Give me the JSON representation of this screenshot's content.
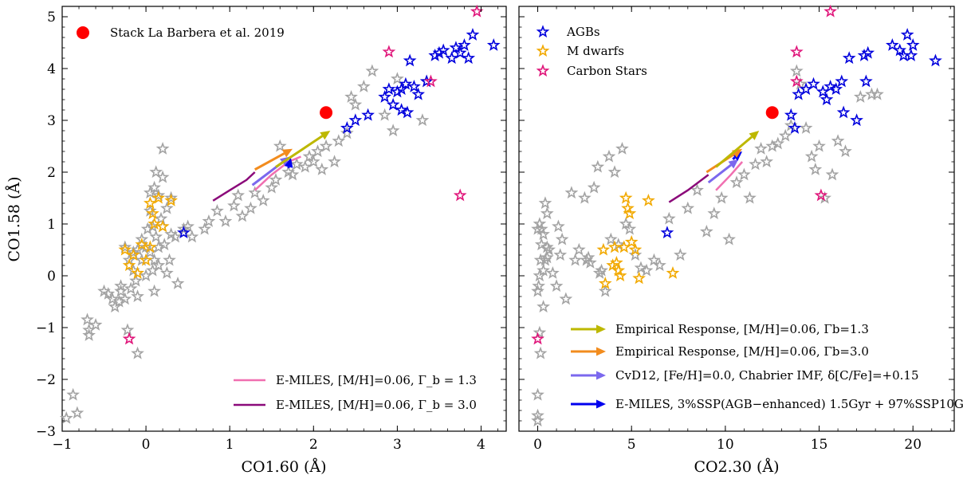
{
  "chart_data": [
    {
      "type": "scatter",
      "xlabel": "CO1.60 (Å)",
      "ylabel": "CO1.58 (Å)",
      "xlim": [
        -1,
        4.3
      ],
      "ylim": [
        -3,
        5.2
      ],
      "xticks": [
        -1,
        0,
        1,
        2,
        3,
        4
      ],
      "yticks": [
        -3,
        -2,
        -1,
        0,
        1,
        2,
        3,
        4,
        5
      ],
      "xtick_labels": [
        "−1",
        "0",
        "1",
        "2",
        "3",
        "4"
      ],
      "ytick_labels": [
        "−3",
        "−2",
        "−1",
        "0",
        "1",
        "2",
        "3",
        "4",
        "5"
      ],
      "legend_top": {
        "placement": "top-left",
        "label": "Stack La Barbera et al. 2019"
      },
      "legend_bottom": {
        "placement": "bottom-right",
        "labels": [
          "E-MILES, [M/H]=0.06, Γ_b = 1.3",
          "E-MILES, [M/H]=0.06, Γ_b = 3.0"
        ]
      },
      "stack_point": [
        2.15,
        3.15
      ],
      "gray_stars": [
        [
          -0.95,
          -2.75
        ],
        [
          -0.87,
          -2.3
        ],
        [
          -0.82,
          -2.65
        ],
        [
          -0.7,
          -0.85
        ],
        [
          -0.68,
          -1.05
        ],
        [
          -0.68,
          -1.15
        ],
        [
          -0.6,
          -0.95
        ],
        [
          -0.5,
          -0.3
        ],
        [
          -0.45,
          -0.35
        ],
        [
          -0.4,
          -0.45
        ],
        [
          -0.37,
          -0.6
        ],
        [
          -0.32,
          -0.5
        ],
        [
          -0.3,
          -0.3
        ],
        [
          -0.25,
          -0.45
        ],
        [
          -0.3,
          -0.2
        ],
        [
          -0.22,
          -1.05
        ],
        [
          -0.2,
          0.3
        ],
        [
          -0.18,
          -0.25
        ],
        [
          -0.15,
          0.1
        ],
        [
          -0.12,
          -0.1
        ],
        [
          -0.1,
          0.5
        ],
        [
          -0.1,
          -0.4
        ],
        [
          -0.05,
          0.7
        ],
        [
          -0.05,
          0.3
        ],
        [
          0.0,
          0.55
        ],
        [
          0.02,
          0.9
        ],
        [
          0.05,
          1.6
        ],
        [
          0.05,
          1.25
        ],
        [
          0.05,
          0.45
        ],
        [
          0.08,
          0.95
        ],
        [
          0.1,
          1.7
        ],
        [
          0.1,
          0.3
        ],
        [
          0.12,
          0.75
        ],
        [
          0.12,
          2.0
        ],
        [
          0.15,
          1.55
        ],
        [
          0.15,
          0.2
        ],
        [
          0.18,
          1.1
        ],
        [
          0.2,
          2.45
        ],
        [
          0.2,
          1.9
        ],
        [
          0.2,
          0.95
        ],
        [
          0.22,
          0.6
        ],
        [
          0.25,
          1.3
        ],
        [
          0.25,
          0.05
        ],
        [
          0.28,
          0.3
        ],
        [
          0.3,
          0.8
        ],
        [
          0.35,
          0.75
        ],
        [
          0.38,
          -0.15
        ],
        [
          0.45,
          0.9
        ],
        [
          0.55,
          0.75
        ],
        [
          -0.1,
          -1.5
        ],
        [
          -0.25,
          0.55
        ],
        [
          0.08,
          0.1
        ],
        [
          0.0,
          0.0
        ],
        [
          0.3,
          1.5
        ],
        [
          0.15,
          0.55
        ],
        [
          0.75,
          1.05
        ],
        [
          0.85,
          1.25
        ],
        [
          0.95,
          1.05
        ],
        [
          1.05,
          1.35
        ],
        [
          1.1,
          1.55
        ],
        [
          1.15,
          1.15
        ],
        [
          1.25,
          1.3
        ],
        [
          1.3,
          1.6
        ],
        [
          1.4,
          1.45
        ],
        [
          1.5,
          1.7
        ],
        [
          1.55,
          1.85
        ],
        [
          1.6,
          2.5
        ],
        [
          1.7,
          2.0
        ],
        [
          1.75,
          1.95
        ],
        [
          1.8,
          2.15
        ],
        [
          1.9,
          2.1
        ],
        [
          1.95,
          2.3
        ],
        [
          2.0,
          2.2
        ],
        [
          2.05,
          2.4
        ],
        [
          2.1,
          2.05
        ],
        [
          2.15,
          2.5
        ],
        [
          2.25,
          2.2
        ],
        [
          2.3,
          2.6
        ],
        [
          2.4,
          2.75
        ],
        [
          2.45,
          3.45
        ],
        [
          2.5,
          3.3
        ],
        [
          2.6,
          3.65
        ],
        [
          2.7,
          3.95
        ],
        [
          2.85,
          3.1
        ],
        [
          2.95,
          2.8
        ],
        [
          3.0,
          3.8
        ],
        [
          3.3,
          3.0
        ],
        [
          3.35,
          3.75
        ],
        [
          0.5,
          0.95
        ],
        [
          0.7,
          0.9
        ],
        [
          -0.15,
          0.45
        ],
        [
          0.1,
          -0.3
        ]
      ],
      "agbs": [
        [
          0.45,
          0.83
        ],
        [
          2.4,
          2.85
        ],
        [
          2.5,
          3.0
        ],
        [
          2.65,
          3.1
        ],
        [
          2.85,
          3.45
        ],
        [
          2.9,
          3.6
        ],
        [
          2.95,
          3.3
        ],
        [
          3.0,
          3.55
        ],
        [
          3.05,
          3.2
        ],
        [
          3.05,
          3.6
        ],
        [
          3.1,
          3.7
        ],
        [
          3.12,
          3.15
        ],
        [
          3.15,
          4.15
        ],
        [
          3.2,
          3.65
        ],
        [
          3.25,
          3.5
        ],
        [
          3.35,
          3.75
        ],
        [
          3.45,
          4.25
        ],
        [
          3.5,
          4.3
        ],
        [
          3.55,
          4.35
        ],
        [
          3.65,
          4.2
        ],
        [
          3.7,
          4.4
        ],
        [
          3.75,
          4.3
        ],
        [
          3.8,
          4.45
        ],
        [
          3.85,
          4.2
        ],
        [
          3.9,
          4.65
        ],
        [
          4.15,
          4.45
        ]
      ],
      "m_dwarfs": [
        [
          -0.25,
          0.5
        ],
        [
          -0.2,
          0.2
        ],
        [
          -0.15,
          0.4
        ],
        [
          -0.1,
          0.05
        ],
        [
          -0.05,
          0.6
        ],
        [
          0.0,
          0.3
        ],
        [
          0.05,
          1.4
        ],
        [
          0.08,
          1.2
        ],
        [
          0.1,
          1.0
        ],
        [
          0.15,
          1.5
        ],
        [
          0.2,
          0.95
        ],
        [
          0.3,
          1.45
        ],
        [
          0.05,
          0.55
        ]
      ],
      "carbon_stars": [
        [
          -0.2,
          -1.22
        ],
        [
          2.9,
          4.32
        ],
        [
          3.4,
          3.75
        ],
        [
          3.75,
          1.55
        ],
        [
          3.95,
          5.1
        ]
      ],
      "arrows": [
        {
          "from": [
            1.27,
            1.75
          ],
          "to": [
            1.72,
            2.3
          ],
          "color": "#7b68ee"
        },
        {
          "from": [
            1.7,
            2.08
          ],
          "to": [
            1.73,
            2.28
          ],
          "color": "#0000ee"
        },
        {
          "from": [
            1.3,
            2.05
          ],
          "to": [
            1.75,
            2.45
          ],
          "color": "#f28c1e"
        },
        {
          "from": [
            1.55,
            2.1
          ],
          "to": [
            2.2,
            2.8
          ],
          "color": "#bdb800"
        }
      ],
      "lines": [
        {
          "label": "E-MILES, [M/H]=0.06, Γ_b = 1.3",
          "color": "#f06fb0",
          "points": [
            [
              1.3,
              1.65
            ],
            [
              1.5,
              1.95
            ],
            [
              1.7,
              2.2
            ],
            [
              1.85,
              2.3
            ]
          ]
        },
        {
          "label": "E-MILES, [M/H]=0.06, Γ_b = 3.0",
          "color": "#8b0a7a",
          "points": [
            [
              0.8,
              1.45
            ],
            [
              1.0,
              1.65
            ],
            [
              1.2,
              1.85
            ],
            [
              1.3,
              2.0
            ]
          ]
        }
      ]
    },
    {
      "type": "scatter",
      "xlabel": "CO2.30 (Å)",
      "ylabel": "",
      "xlim": [
        -1,
        22.2
      ],
      "ylim": [
        -3,
        5.2
      ],
      "xticks": [
        0,
        5,
        10,
        15,
        20
      ],
      "yticks": [
        -3,
        -2,
        -1,
        0,
        1,
        2,
        3,
        4,
        5
      ],
      "xtick_labels": [
        "0",
        "5",
        "10",
        "15",
        "20"
      ],
      "legend_top": {
        "placement": "top-left",
        "labels": [
          "AGBs",
          "M dwarfs",
          "Carbon Stars"
        ]
      },
      "legend_bottom": {
        "placement": "bottom-right",
        "labels": [
          "Empirical Response, [M/H]=0.06, Γb=1.3",
          "Empirical Response, [M/H]=0.06, Γb=3.0",
          "CvD12, [Fe/H]=0.0, Chabrier IMF, δ[C/Fe]=+0.15",
          "E-MILES, 3%SSP(AGB−enhanced) 1.5Gyr + 97%SSP10Gyr"
        ]
      },
      "stack_point": [
        12.5,
        3.15
      ],
      "gray_stars": [
        [
          0.0,
          -2.7
        ],
        [
          0.0,
          -2.8
        ],
        [
          0.0,
          -2.3
        ],
        [
          0.1,
          -1.1
        ],
        [
          0.15,
          -1.5
        ],
        [
          0.0,
          -0.3
        ],
        [
          0.05,
          -0.2
        ],
        [
          0.1,
          0.0
        ],
        [
          0.15,
          0.3
        ],
        [
          0.2,
          0.6
        ],
        [
          0.3,
          0.8
        ],
        [
          0.4,
          1.4
        ],
        [
          0.5,
          1.2
        ],
        [
          0.0,
          0.9
        ],
        [
          0.1,
          1.0
        ],
        [
          0.3,
          -0.6
        ],
        [
          0.4,
          0.3
        ],
        [
          0.5,
          0.35
        ],
        [
          0.6,
          0.5
        ],
        [
          0.8,
          0.05
        ],
        [
          1.0,
          -0.2
        ],
        [
          1.2,
          0.4
        ],
        [
          1.3,
          0.7
        ],
        [
          1.5,
          -0.45
        ],
        [
          1.8,
          1.6
        ],
        [
          2.0,
          0.3
        ],
        [
          2.2,
          0.5
        ],
        [
          2.5,
          1.5
        ],
        [
          2.6,
          0.3
        ],
        [
          2.8,
          0.25
        ],
        [
          3.0,
          1.7
        ],
        [
          3.2,
          2.1
        ],
        [
          3.4,
          0.1
        ],
        [
          3.6,
          -0.3
        ],
        [
          3.8,
          2.3
        ],
        [
          3.9,
          0.7
        ],
        [
          4.1,
          2.0
        ],
        [
          4.3,
          0.6
        ],
        [
          4.5,
          2.45
        ],
        [
          4.7,
          1.0
        ],
        [
          4.9,
          0.9
        ],
        [
          5.2,
          0.4
        ],
        [
          5.5,
          0.15
        ],
        [
          5.8,
          0.1
        ],
        [
          6.2,
          0.3
        ],
        [
          6.5,
          0.2
        ],
        [
          7.0,
          1.1
        ],
        [
          7.6,
          0.4
        ],
        [
          8.0,
          1.3
        ],
        [
          8.5,
          1.65
        ],
        [
          9.0,
          0.85
        ],
        [
          9.4,
          1.2
        ],
        [
          9.8,
          1.5
        ],
        [
          10.2,
          0.7
        ],
        [
          10.6,
          1.8
        ],
        [
          11.0,
          1.95
        ],
        [
          11.3,
          1.5
        ],
        [
          11.6,
          2.15
        ],
        [
          11.9,
          2.45
        ],
        [
          12.2,
          2.2
        ],
        [
          12.5,
          2.5
        ],
        [
          12.8,
          2.55
        ],
        [
          13.2,
          2.7
        ],
        [
          13.5,
          2.9
        ],
        [
          13.8,
          3.95
        ],
        [
          14.0,
          3.7
        ],
        [
          14.3,
          2.85
        ],
        [
          14.6,
          2.3
        ],
        [
          14.8,
          2.05
        ],
        [
          15.0,
          2.5
        ],
        [
          15.3,
          1.5
        ],
        [
          15.7,
          1.95
        ],
        [
          16.0,
          2.6
        ],
        [
          16.4,
          2.4
        ],
        [
          17.2,
          3.45
        ],
        [
          17.8,
          3.5
        ],
        [
          18.1,
          3.5
        ],
        [
          0.5,
          0.55
        ],
        [
          0.3,
          0.1
        ],
        [
          0.2,
          0.9
        ],
        [
          1.1,
          0.95
        ],
        [
          2.7,
          0.35
        ],
        [
          3.3,
          0.05
        ]
      ],
      "agbs": [
        [
          6.9,
          0.83
        ],
        [
          13.5,
          3.1
        ],
        [
          13.7,
          2.85
        ],
        [
          13.9,
          3.5
        ],
        [
          14.3,
          3.6
        ],
        [
          14.7,
          3.7
        ],
        [
          15.2,
          3.55
        ],
        [
          15.4,
          3.4
        ],
        [
          15.6,
          3.65
        ],
        [
          15.9,
          3.6
        ],
        [
          16.2,
          3.75
        ],
        [
          16.3,
          3.15
        ],
        [
          16.6,
          4.2
        ],
        [
          17.0,
          3.0
        ],
        [
          17.5,
          3.75
        ],
        [
          17.6,
          4.3
        ],
        [
          18.9,
          4.45
        ],
        [
          19.3,
          4.35
        ],
        [
          19.5,
          4.25
        ],
        [
          19.7,
          4.65
        ],
        [
          19.9,
          4.25
        ],
        [
          20.0,
          4.45
        ],
        [
          21.2,
          4.15
        ],
        [
          17.4,
          4.25
        ]
      ],
      "m_dwarfs": [
        [
          3.5,
          0.5
        ],
        [
          3.6,
          -0.15
        ],
        [
          4.1,
          0.55
        ],
        [
          4.2,
          0.25
        ],
        [
          4.3,
          0.1
        ],
        [
          4.4,
          0.0
        ],
        [
          4.6,
          0.55
        ],
        [
          4.7,
          1.5
        ],
        [
          4.8,
          1.3
        ],
        [
          4.9,
          1.2
        ],
        [
          5.0,
          0.65
        ],
        [
          5.2,
          0.5
        ],
        [
          5.4,
          -0.05
        ],
        [
          5.9,
          1.45
        ],
        [
          7.2,
          0.05
        ],
        [
          4.0,
          0.2
        ]
      ],
      "carbon_stars": [
        [
          0.0,
          -1.22
        ],
        [
          13.8,
          4.32
        ],
        [
          13.8,
          3.75
        ],
        [
          15.1,
          1.55
        ],
        [
          15.6,
          5.1
        ]
      ],
      "arrows": [
        {
          "from": [
            9.1,
            1.8
          ],
          "to": [
            10.7,
            2.25
          ],
          "color": "#7b68ee"
        },
        {
          "from": [
            10.4,
            2.25
          ],
          "to": [
            10.9,
            2.4
          ],
          "color": "#0000ee"
        },
        {
          "from": [
            9.0,
            2.0
          ],
          "to": [
            10.9,
            2.45
          ],
          "color": "#f28c1e"
        },
        {
          "from": [
            9.5,
            2.1
          ],
          "to": [
            11.8,
            2.8
          ],
          "color": "#bdb800"
        }
      ],
      "lines": [
        {
          "color": "#f06fb0",
          "points": [
            [
              9.5,
              1.65
            ],
            [
              10.3,
              1.95
            ],
            [
              10.9,
              2.2
            ]
          ]
        },
        {
          "color": "#8b0a7a",
          "points": [
            [
              7.0,
              1.42
            ],
            [
              8.0,
              1.65
            ],
            [
              9.1,
              1.95
            ]
          ]
        }
      ]
    }
  ]
}
